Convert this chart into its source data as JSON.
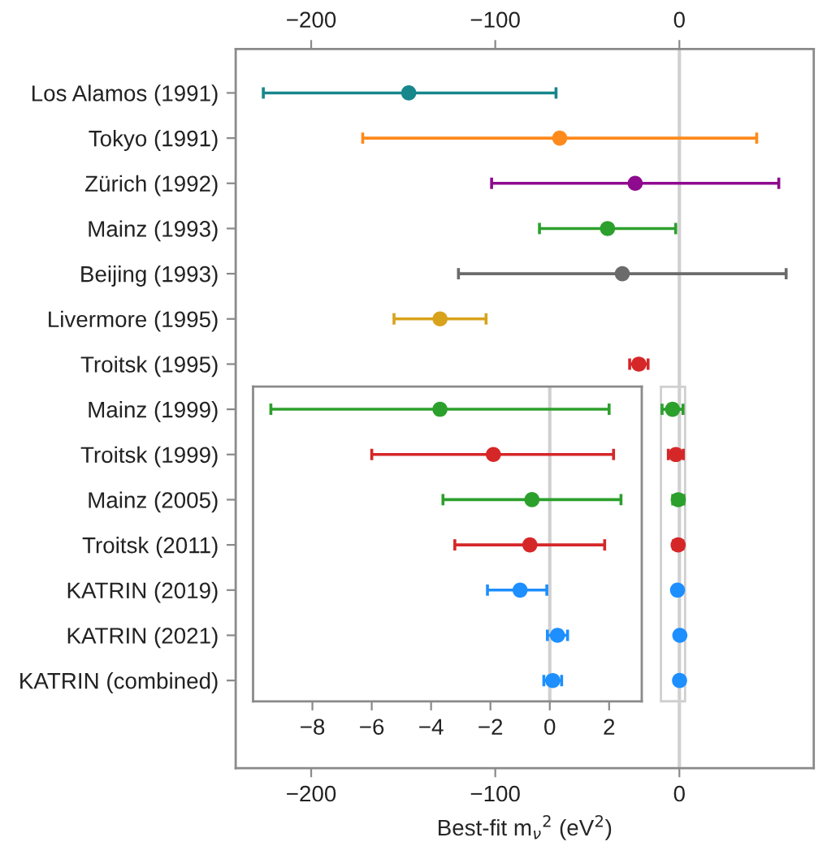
{
  "chart_data": [
    {
      "type": "scatter",
      "orientation": "horizontal",
      "xlabel": "Best-fit m$_{ν}$$^{2}$ (eV$^{2}$)",
      "categories": [
        "Los Alamos (1991)",
        "Tokyo (1991)",
        "Zürich (1992)",
        "Mainz (1993)",
        "Beijing (1993)",
        "Livermore (1995)",
        "Troitsk (1995)",
        "Mainz (1999)",
        "Troitsk (1999)",
        "Mainz (2005)",
        "Troitsk (2011)",
        "KATRIN (2019)",
        "KATRIN (2021)",
        "KATRIN (combined)"
      ],
      "values": [
        -147,
        -65,
        -24,
        -39,
        -31,
        -130,
        -22,
        -3.7,
        -1.9,
        -0.6,
        -0.67,
        -1.0,
        0.26,
        0.1
      ],
      "errors": [
        [
          -226,
          -67
        ],
        [
          -172,
          42
        ],
        [
          -102,
          54
        ],
        [
          -76,
          -2
        ],
        [
          -120,
          58
        ],
        [
          -155,
          -105
        ],
        [
          -27,
          -17
        ],
        [
          -9.4,
          2.0
        ],
        [
          -6.0,
          2.15
        ],
        [
          -3.6,
          2.4
        ],
        [
          -3.2,
          1.85
        ],
        [
          -2.1,
          -0.1
        ],
        [
          -0.08,
          0.6
        ],
        [
          -0.2,
          0.4
        ]
      ],
      "colors": [
        "#17878c",
        "#ff8a1c",
        "#8e0a8e",
        "#2ca02c",
        "#6b6b6b",
        "#d9a21b",
        "#d62728",
        "#2ca02c",
        "#d62728",
        "#2ca02c",
        "#d62728",
        "#1e8fff",
        "#1e8fff",
        "#1e8fff"
      ],
      "xlim": [
        -241,
        73
      ],
      "xticks": [
        {
          "value": -200,
          "label": "−200"
        },
        {
          "value": -100,
          "label": "−100"
        },
        0
      ],
      "x2lim": [
        -241,
        73
      ],
      "x2ticks": [
        {
          "value": -200,
          "label": "−200"
        },
        {
          "value": -100,
          "label": "−100"
        },
        0
      ],
      "ref_lines": [
        {
          "axis": "x",
          "value": 0,
          "color": "#d0d0d0"
        }
      ],
      "grid": false,
      "legend": false
    },
    {
      "type": "scatter",
      "orientation": "horizontal",
      "categories": [
        null,
        null,
        null,
        null,
        null,
        null,
        null
      ],
      "values": [
        -3.7,
        -1.9,
        -0.6,
        -0.67,
        -1.0,
        0.26,
        0.1
      ],
      "errors": [
        [
          -9.4,
          2.0
        ],
        [
          -6.0,
          2.15
        ],
        [
          -3.6,
          2.4
        ],
        [
          -3.2,
          1.85
        ],
        [
          -2.1,
          -0.1
        ],
        [
          -0.08,
          0.6
        ],
        [
          -0.2,
          0.4
        ]
      ],
      "colors": [
        "#2ca02c",
        "#d62728",
        "#2ca02c",
        "#d62728",
        "#1e8fff",
        "#1e8fff",
        "#1e8fff"
      ],
      "xlim": [
        -10,
        3.1
      ],
      "xticks": [
        {
          "value": -8,
          "label": "−8"
        },
        {
          "value": -6,
          "label": "−6"
        },
        {
          "value": -4,
          "label": "−4"
        },
        {
          "value": -2,
          "label": "−2"
        },
        0,
        2
      ],
      "ref_lines": [
        {
          "axis": "x",
          "value": 0,
          "color": "#d0d0d0"
        }
      ],
      "grid": false,
      "legend": false,
      "tick_labels": "x"
    }
  ]
}
